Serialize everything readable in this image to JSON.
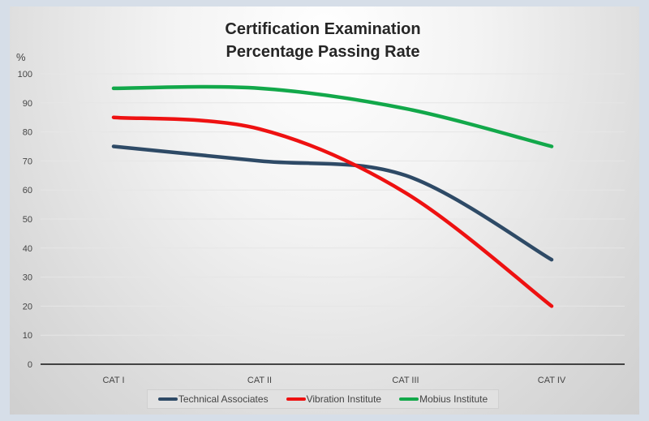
{
  "chart_data": {
    "type": "line",
    "title": [
      "Certification Examination",
      "Percentage Passing Rate"
    ],
    "ylabel": "%",
    "xlabel": "",
    "ylim": [
      0,
      100
    ],
    "yticks": [
      0,
      10,
      20,
      30,
      40,
      50,
      60,
      70,
      80,
      90,
      100
    ],
    "categories": [
      "CAT I",
      "CAT II",
      "CAT III",
      "CAT IV"
    ],
    "grid": true,
    "smooth": true,
    "legend_position": "bottom",
    "series": [
      {
        "name": "Technical Associates",
        "color": "#2e4a66",
        "values": [
          75,
          70,
          65,
          36
        ]
      },
      {
        "name": "Vibration Institute",
        "color": "#ee1111",
        "values": [
          85,
          81,
          59,
          20
        ]
      },
      {
        "name": "Mobius Institute",
        "color": "#12a84a",
        "values": [
          95,
          95,
          88,
          75
        ]
      }
    ]
  }
}
